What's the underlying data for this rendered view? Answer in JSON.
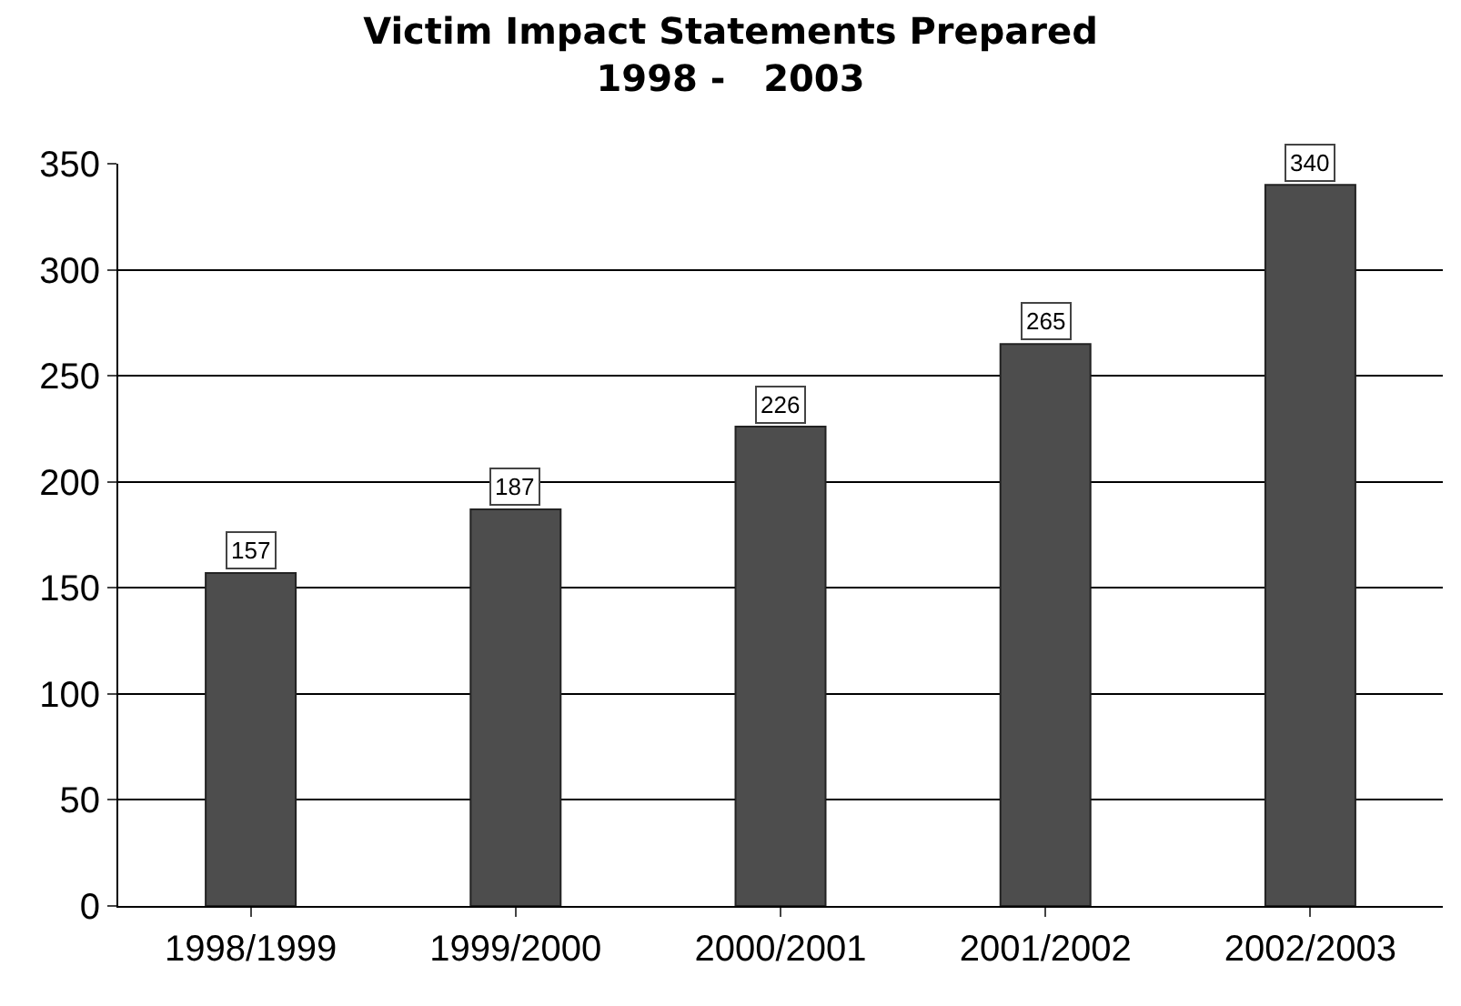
{
  "chart_data": {
    "type": "bar",
    "title": "Victim Impact Statements Prepared",
    "subtitle": "1998 -   2003",
    "categories": [
      "1998/1999",
      "1999/2000",
      "2000/2001",
      "2001/2002",
      "2002/2003"
    ],
    "values": [
      157,
      187,
      226,
      265,
      340
    ],
    "color": "#4d4d4d",
    "ylim": [
      0,
      350
    ],
    "yticks": [
      0,
      50,
      100,
      150,
      200,
      250,
      300,
      350
    ],
    "grid": "y",
    "data_labels": true
  }
}
